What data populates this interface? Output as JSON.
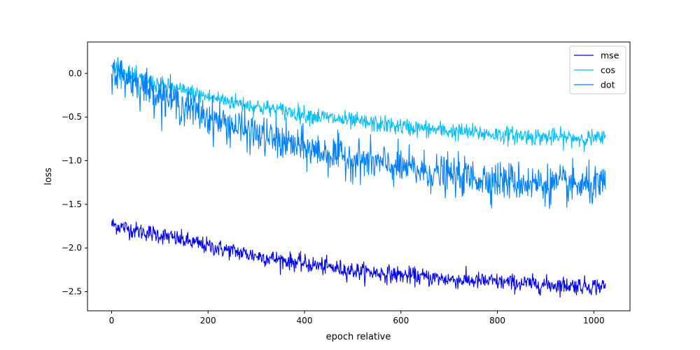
{
  "chart_data": {
    "type": "line",
    "title": "",
    "xlabel": "epoch relative",
    "ylabel": "loss",
    "xlim": [
      -50,
      1075
    ],
    "ylim": [
      -2.72,
      0.36
    ],
    "xticks": [
      0,
      200,
      400,
      600,
      800,
      1000
    ],
    "yticks": [
      0.0,
      -0.5,
      -1.0,
      -1.5,
      -2.0,
      -2.5
    ],
    "xtick_labels": [
      "0",
      "200",
      "400",
      "600",
      "800",
      "1000"
    ],
    "ytick_labels": [
      "0.0",
      "−0.5",
      "−1.0",
      "−1.5",
      "−2.0",
      "−2.5"
    ],
    "grid": false,
    "legend_position": "top-right",
    "n_points": 1025,
    "series": [
      {
        "name": "mse",
        "color": "#0000ff",
        "trend_x": [
          0,
          50,
          100,
          200,
          300,
          400,
          500,
          600,
          700,
          800,
          900,
          1024
        ],
        "trend_y": [
          -1.73,
          -1.8,
          -1.85,
          -1.98,
          -2.09,
          -2.18,
          -2.26,
          -2.31,
          -2.36,
          -2.39,
          -2.42,
          -2.44
        ],
        "noise": 0.05
      },
      {
        "name": "cos",
        "color": "#00bfff",
        "trend_x": [
          0,
          50,
          100,
          200,
          300,
          400,
          500,
          600,
          700,
          800,
          900,
          1024
        ],
        "trend_y": [
          0.08,
          -0.06,
          -0.14,
          -0.27,
          -0.38,
          -0.47,
          -0.55,
          -0.61,
          -0.66,
          -0.7,
          -0.73,
          -0.75
        ],
        "noise": 0.05
      },
      {
        "name": "dot",
        "color": "#0080ff",
        "trend_x": [
          0,
          50,
          100,
          200,
          300,
          400,
          500,
          600,
          700,
          800,
          900,
          1024
        ],
        "trend_y": [
          0.05,
          -0.1,
          -0.24,
          -0.5,
          -0.7,
          -0.86,
          -0.98,
          -1.08,
          -1.17,
          -1.22,
          -1.27,
          -1.3
        ],
        "noise": 0.11
      }
    ]
  }
}
